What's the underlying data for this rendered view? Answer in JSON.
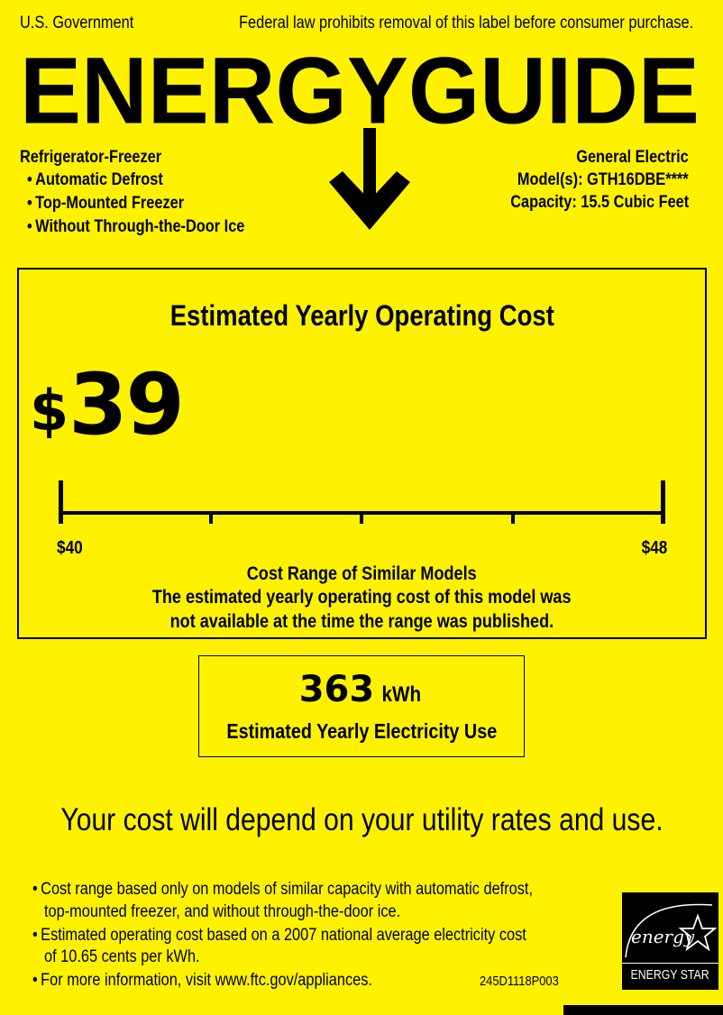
{
  "header": {
    "left": "U.S. Government",
    "right": "Federal law prohibits removal of this label before consumer purchase.",
    "logo_text": "ENERGYGUIDE"
  },
  "product": {
    "type": "Refrigerator-Freezer",
    "features": [
      "Automatic Defrost",
      "Top-Mounted Freezer",
      "Without Through-the-Door Ice"
    ],
    "brand": "General Electric",
    "model": "Model(s): GTH16DBE****",
    "capacity": "Capacity: 15.5 Cubic Feet"
  },
  "cost": {
    "title": "Estimated Yearly Operating Cost",
    "currency": "$",
    "amount": "39",
    "range_min_label": "$40",
    "range_max_label": "$48",
    "range_min": 40,
    "range_max": 48,
    "range_title": "Cost Range of Similar Models",
    "note_line1": "The estimated yearly operating cost of this model was",
    "note_line2": "not available at the time the range was published."
  },
  "electricity": {
    "value": "363",
    "unit": "kWh",
    "label": "Estimated Yearly Electricity Use"
  },
  "disclaimer": "Your cost will depend on your utility rates and use.",
  "footnotes": [
    {
      "line1": "Cost range based only on models of similar capacity with automatic defrost,",
      "line2": "top-mounted freezer, and without through-the-door ice."
    },
    {
      "line1": "Estimated operating cost based on a 2007 national average electricity cost",
      "line2": "of 10.65 cents per kWh."
    },
    {
      "line1": "For more information, visit www.ftc.gov/appliances.",
      "line2": ""
    }
  ],
  "label_code": "245D1118P003",
  "energy_star": {
    "script": "energy",
    "label": "ENERGY STAR"
  },
  "colors": {
    "background": "#fff200",
    "ink": "#000000"
  }
}
